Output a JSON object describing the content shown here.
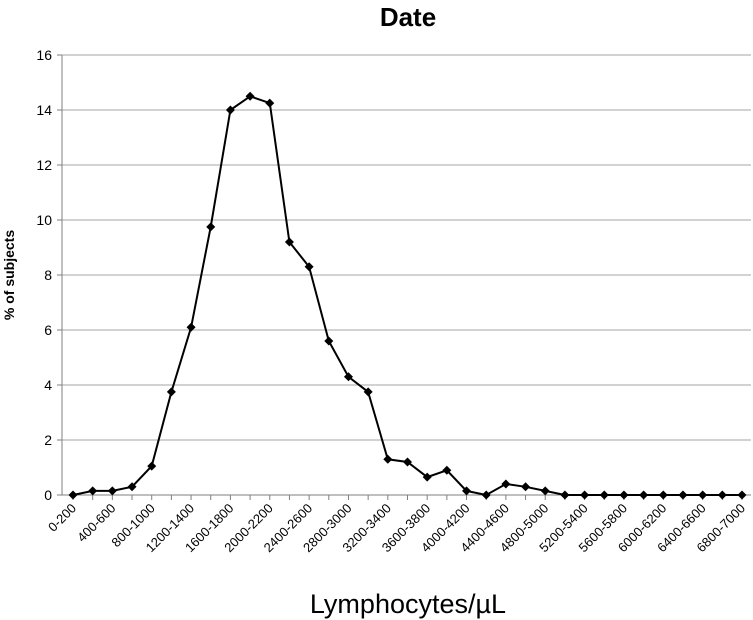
{
  "chart_data": {
    "type": "line",
    "title": "Date",
    "xlabel": "Lymphocytes/µL",
    "ylabel": "% of subjects",
    "ylim": [
      0,
      16
    ],
    "yticks": [
      0,
      2,
      4,
      6,
      8,
      10,
      12,
      14,
      16
    ],
    "grid": true,
    "legend": "none",
    "series_color": "#000000",
    "gridline_color": "#a6a6a6",
    "marker": "diamond",
    "x": [
      "0-200",
      "200-400",
      "400-600",
      "600-800",
      "800-1000",
      "1000-1200",
      "1200-1400",
      "1400-1600",
      "1600-1800",
      "1800-2000",
      "2000-2200",
      "2200-2400",
      "2400-2600",
      "2600-2800",
      "2800-3000",
      "3000-3200",
      "3200-3400",
      "3400-3600",
      "3600-3800",
      "3800-4000",
      "4000-4200",
      "4200-4400",
      "4400-4600",
      "4600-4800",
      "4800-5000",
      "5000-5200",
      "5200-5400",
      "5400-5600",
      "5600-5800",
      "5800-6000",
      "6000-6200",
      "6200-6400",
      "6400-6600",
      "6600-6800",
      "6800-7000"
    ],
    "x_tick_labels_shown": [
      "0-200",
      "400-600",
      "800-1000",
      "1200-1400",
      "1600-1800",
      "2000-2200",
      "2400-2600",
      "2800-3000",
      "3200-3400",
      "3600-3800",
      "4000-4200",
      "4400-4600",
      "4800-5000",
      "5200-5400",
      "5600-5800",
      "6000-6200",
      "6400-6600",
      "6800-7000"
    ],
    "values": [
      0,
      0.15,
      0.15,
      0.3,
      1.05,
      3.75,
      6.1,
      9.75,
      14.0,
      14.5,
      14.25,
      9.2,
      8.3,
      5.6,
      4.3,
      3.75,
      1.3,
      1.2,
      0.65,
      0.9,
      0.15,
      0,
      0.4,
      0.3,
      0.15,
      0,
      0,
      0,
      0,
      0,
      0,
      0,
      0,
      0,
      0
    ]
  }
}
